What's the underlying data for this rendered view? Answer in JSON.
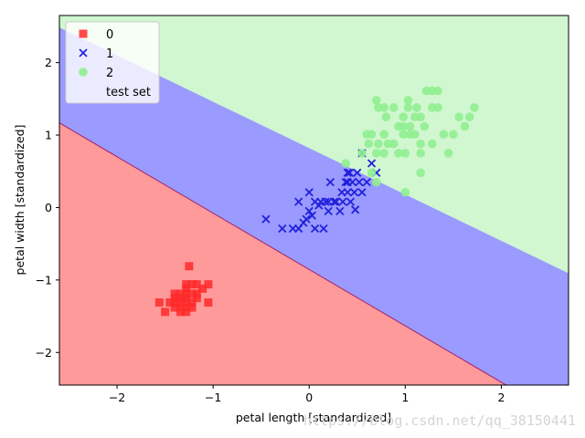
{
  "chart_data": {
    "type": "scatter",
    "title": "",
    "xlabel": "petal length [standardized]",
    "ylabel": "petal width [standardized]",
    "xlim": [
      -2.6,
      2.7
    ],
    "ylim": [
      -2.45,
      2.65
    ],
    "xticks": [
      -2,
      -1,
      0,
      1,
      2
    ],
    "yticks": [
      -2,
      -1,
      0,
      1,
      2
    ],
    "tick_labels_x": [
      "−2",
      "−1",
      "0",
      "1",
      "2"
    ],
    "tick_labels_y": [
      "−2",
      "−1",
      "0",
      "1",
      "2"
    ],
    "grid": false,
    "legend_placement": "top-left",
    "decision_regions": [
      {
        "class": "0",
        "color": "#ff9a9a"
      },
      {
        "class": "1",
        "color": "#9a9aff"
      },
      {
        "class": "2",
        "color": "#d0f7d0"
      }
    ],
    "series": [
      {
        "name": "0",
        "marker": "square",
        "color": "#ff2a2a",
        "points": [
          [
            -1.56,
            -1.31
          ],
          [
            -1.5,
            -1.44
          ],
          [
            -1.45,
            -1.31
          ],
          [
            -1.4,
            -1.25
          ],
          [
            -1.4,
            -1.38
          ],
          [
            -1.4,
            -1.19
          ],
          [
            -1.34,
            -1.19
          ],
          [
            -1.34,
            -1.31
          ],
          [
            -1.34,
            -1.38
          ],
          [
            -1.34,
            -1.44
          ],
          [
            -1.34,
            -1.25
          ],
          [
            -1.28,
            -1.06
          ],
          [
            -1.28,
            -1.19
          ],
          [
            -1.28,
            -1.31
          ],
          [
            -1.28,
            -1.38
          ],
          [
            -1.28,
            -1.44
          ],
          [
            -1.28,
            -1.25
          ],
          [
            -1.22,
            -1.06
          ],
          [
            -1.22,
            -1.19
          ],
          [
            -1.22,
            -1.31
          ],
          [
            -1.25,
            -0.81
          ],
          [
            -1.17,
            -1.06
          ],
          [
            -1.17,
            -1.19
          ],
          [
            -1.17,
            -1.25
          ],
          [
            -1.11,
            -1.12
          ],
          [
            -1.05,
            -1.06
          ],
          [
            -1.05,
            -1.31
          ],
          [
            -1.28,
            -1.12
          ],
          [
            -1.4,
            -1.31
          ],
          [
            -1.22,
            -1.38
          ]
        ]
      },
      {
        "name": "1",
        "marker": "x",
        "color": "#2222dd",
        "points": [
          [
            -0.45,
            -0.16
          ],
          [
            -0.28,
            -0.29
          ],
          [
            -0.17,
            -0.29
          ],
          [
            -0.11,
            -0.29
          ],
          [
            -0.11,
            0.08
          ],
          [
            -0.06,
            -0.21
          ],
          [
            -0.03,
            -0.16
          ],
          [
            0.0,
            -0.05
          ],
          [
            0.0,
            0.21
          ],
          [
            0.03,
            -0.11
          ],
          [
            0.06,
            0.08
          ],
          [
            0.06,
            -0.29
          ],
          [
            0.1,
            0.03
          ],
          [
            0.12,
            0.08
          ],
          [
            0.15,
            -0.29
          ],
          [
            0.17,
            0.08
          ],
          [
            0.2,
            0.08
          ],
          [
            0.2,
            -0.05
          ],
          [
            0.22,
            0.35
          ],
          [
            0.26,
            0.08
          ],
          [
            0.28,
            0.08
          ],
          [
            0.32,
            -0.05
          ],
          [
            0.34,
            0.21
          ],
          [
            0.35,
            0.08
          ],
          [
            0.38,
            0.35
          ],
          [
            0.4,
            0.35
          ],
          [
            0.4,
            0.21
          ],
          [
            0.4,
            0.48
          ],
          [
            0.43,
            0.08
          ],
          [
            0.45,
            0.35
          ],
          [
            0.47,
            0.21
          ],
          [
            0.48,
            -0.03
          ],
          [
            0.5,
            0.48
          ],
          [
            0.52,
            0.35
          ],
          [
            0.55,
            0.21
          ],
          [
            0.55,
            0.75
          ],
          [
            0.6,
            0.35
          ],
          [
            0.65,
            0.61
          ],
          [
            0.7,
            0.48
          ],
          [
            0.42,
            0.48
          ]
        ]
      },
      {
        "name": "2",
        "marker": "circle",
        "color": "#90ee90",
        "points": [
          [
            0.38,
            0.61
          ],
          [
            0.55,
            0.75
          ],
          [
            0.6,
            1.01
          ],
          [
            0.62,
            0.88
          ],
          [
            0.65,
            0.48
          ],
          [
            0.65,
            1.01
          ],
          [
            0.7,
            0.35
          ],
          [
            0.7,
            1.48
          ],
          [
            0.7,
            0.75
          ],
          [
            0.72,
            1.38
          ],
          [
            0.72,
            0.88
          ],
          [
            0.78,
            1.01
          ],
          [
            0.78,
            0.75
          ],
          [
            0.78,
            1.38
          ],
          [
            0.8,
            1.25
          ],
          [
            0.82,
            0.88
          ],
          [
            0.88,
            1.38
          ],
          [
            0.88,
            0.88
          ],
          [
            0.93,
            1.12
          ],
          [
            0.93,
            0.75
          ],
          [
            0.98,
            1.25
          ],
          [
            0.98,
            1.12
          ],
          [
            1.0,
            0.75
          ],
          [
            1.0,
            0.21
          ],
          [
            1.03,
            1.48
          ],
          [
            1.03,
            1.38
          ],
          [
            1.05,
            1.01
          ],
          [
            1.05,
            1.12
          ],
          [
            1.1,
            1.25
          ],
          [
            1.12,
            1.38
          ],
          [
            1.16,
            0.48
          ],
          [
            1.16,
            1.25
          ],
          [
            1.16,
            0.75
          ],
          [
            1.2,
            1.12
          ],
          [
            1.22,
            1.61
          ],
          [
            1.28,
            1.61
          ],
          [
            1.28,
            0.88
          ],
          [
            1.28,
            1.38
          ],
          [
            1.34,
            1.61
          ],
          [
            1.34,
            1.38
          ],
          [
            1.4,
            1.01
          ],
          [
            1.45,
            0.75
          ],
          [
            1.5,
            1.01
          ],
          [
            1.56,
            1.25
          ],
          [
            1.62,
            1.12
          ],
          [
            1.67,
            1.25
          ],
          [
            1.72,
            1.38
          ],
          [
            1.16,
            0.88
          ],
          [
            1.1,
            1.01
          ],
          [
            0.98,
            1.01
          ]
        ]
      },
      {
        "name": "test set",
        "marker": "none",
        "color": "none",
        "points": []
      }
    ]
  },
  "watermark": "https://blog.csdn.net/qq_38150441"
}
